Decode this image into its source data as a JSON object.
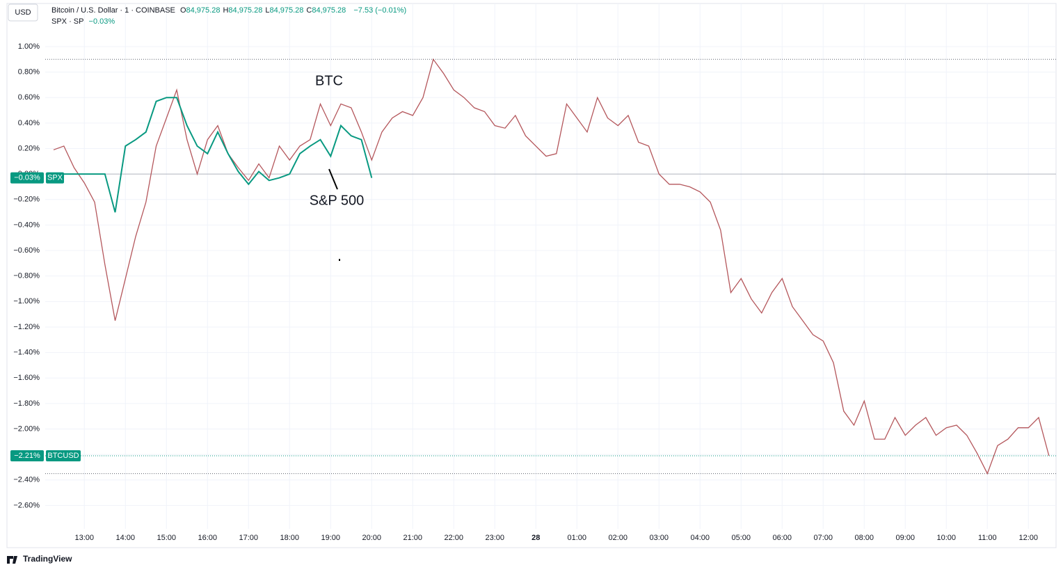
{
  "chart_data": {
    "type": "line",
    "header": {
      "currency": "USD",
      "title": "Bitcoin / U.S. Dollar · 1 · COINBASE",
      "ohlc": [
        {
          "key": "O",
          "value": "84,975.28"
        },
        {
          "key": "H",
          "value": "84,975.28"
        },
        {
          "key": "L",
          "value": "84,975.28"
        },
        {
          "key": "C",
          "value": "84,975.28"
        }
      ],
      "change": "−7.53 (−0.01%)",
      "compare": "SPX · SP",
      "compare_change": "−0.03%"
    },
    "annotations": [
      "BTC",
      "S&P 500"
    ],
    "brand": "TradingView",
    "categories": [
      null,
      null,
      null,
      "13:00",
      null,
      null,
      null,
      "14:00",
      null,
      null,
      null,
      "15:00",
      null,
      null,
      null,
      "16:00",
      null,
      null,
      null,
      "17:00",
      null,
      null,
      null,
      "18:00",
      null,
      null,
      null,
      "19:00",
      null,
      null,
      null,
      "20:00",
      null,
      null,
      null,
      "21:00",
      null,
      null,
      null,
      "22:00",
      null,
      null,
      null,
      "23:00",
      null,
      null,
      null,
      "28",
      null,
      null,
      null,
      "01:00",
      null,
      null,
      null,
      "02:00",
      null,
      null,
      null,
      "03:00",
      null,
      null,
      null,
      "04:00",
      null,
      null,
      null,
      "05:00",
      null,
      null,
      null,
      "06:00",
      null,
      null,
      null,
      "07:00",
      null,
      null,
      null,
      "08:00",
      null,
      null,
      null,
      "09:00",
      null,
      null,
      null,
      "10:00",
      null,
      null,
      null,
      "11:00",
      null,
      null,
      null,
      "12:00",
      null,
      null
    ],
    "series": [
      {
        "name": "BTCUSD",
        "color": "#b4565b",
        "last_label": {
          "value": -2.21,
          "label": "−2.21%"
        },
        "values": [
          0.19,
          0.22,
          0.05,
          -0.07,
          -0.22,
          -0.71,
          -1.15,
          -0.82,
          -0.49,
          -0.22,
          0.22,
          0.44,
          0.66,
          0.27,
          0.0,
          0.27,
          0.38,
          0.16,
          0.05,
          -0.05,
          0.08,
          -0.03,
          0.22,
          0.11,
          0.22,
          0.27,
          0.55,
          0.38,
          0.55,
          0.52,
          0.33,
          0.11,
          0.33,
          0.44,
          0.49,
          0.46,
          0.6,
          0.9,
          0.79,
          0.66,
          0.6,
          0.52,
          0.49,
          0.38,
          0.36,
          0.46,
          0.3,
          0.22,
          0.14,
          0.16,
          0.55,
          0.44,
          0.33,
          0.6,
          0.44,
          0.38,
          0.46,
          0.25,
          0.22,
          0.0,
          -0.08,
          -0.08,
          -0.1,
          -0.14,
          -0.22,
          -0.44,
          -0.93,
          -0.82,
          -0.98,
          -1.09,
          -0.93,
          -0.82,
          -1.04,
          -1.15,
          -1.26,
          -1.31,
          -1.48,
          -1.86,
          -1.97,
          -1.78,
          -2.08,
          -2.08,
          -1.91,
          -2.05,
          -1.97,
          -1.91,
          -2.05,
          -1.99,
          -1.97,
          -2.05,
          -2.19,
          -2.35,
          -2.13,
          -2.08,
          -1.99,
          -1.99,
          -1.91,
          -2.21
        ]
      },
      {
        "name": "SPX",
        "color": "#089981",
        "last_label": {
          "value": -0.03,
          "label": "−0.03%"
        },
        "values": [
          0,
          0,
          0,
          0,
          0,
          0,
          -0.3,
          0.22,
          0.27,
          0.33,
          0.57,
          0.6,
          0.6,
          0.38,
          0.22,
          0.16,
          0.33,
          0.16,
          0.02,
          -0.08,
          0.02,
          -0.05,
          -0.03,
          0.0,
          0.16,
          0.22,
          0.27,
          0.14,
          0.38,
          0.3,
          0.27,
          -0.03,
          null,
          null,
          null,
          null,
          null,
          null,
          null,
          null,
          null,
          null,
          null,
          null,
          null,
          null,
          null,
          null,
          null,
          null,
          null,
          null,
          null,
          null,
          null,
          null,
          null,
          null,
          null,
          null,
          null,
          null,
          null,
          null,
          null,
          null,
          null,
          null,
          null,
          null,
          null,
          null,
          null,
          null,
          null,
          null,
          null,
          null,
          null,
          null,
          null,
          null,
          null,
          null,
          null,
          null,
          null,
          null,
          null,
          null,
          null,
          null,
          null,
          null,
          null,
          null,
          null,
          null
        ]
      }
    ],
    "ylim": [
      1.12,
      -2.92
    ],
    "yticks": [
      {
        "value": 1,
        "label": "1.00%"
      },
      {
        "value": 0.8,
        "label": "0.80%"
      },
      {
        "value": 0.6,
        "label": "0.60%"
      },
      {
        "value": 0.4,
        "label": "0.40%"
      },
      {
        "value": 0.2,
        "label": "0.20%"
      },
      {
        "value": 0,
        "label": "0.00%"
      },
      {
        "value": -0.2,
        "label": "−0.20%"
      },
      {
        "value": -0.4,
        "label": "−0.40%"
      },
      {
        "value": -0.6,
        "label": "−0.60%"
      },
      {
        "value": -0.8,
        "label": "−0.80%"
      },
      {
        "value": -1,
        "label": "−1.00%"
      },
      {
        "value": -1.2,
        "label": "−1.20%"
      },
      {
        "value": -1.4,
        "label": "−1.40%"
      },
      {
        "value": -1.6,
        "label": "−1.60%"
      },
      {
        "value": -1.8,
        "label": "−1.80%"
      },
      {
        "value": -2,
        "label": "−2.00%"
      },
      {
        "value": -2.2,
        "label": "−2.20%"
      },
      {
        "value": -2.4,
        "label": "−2.40%"
      },
      {
        "value": -2.6,
        "label": "−2.60%"
      }
    ],
    "grid": true
  }
}
